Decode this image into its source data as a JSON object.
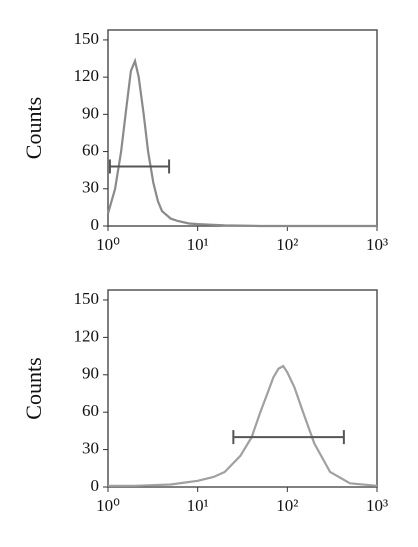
{
  "chart_data": [
    {
      "type": "line",
      "ylabel": "Counts",
      "xscale": "log",
      "color": "#8a8a8a",
      "x": [
        1,
        1.2,
        1.4,
        1.6,
        1.8,
        2,
        2.2,
        2.5,
        2.8,
        3.2,
        3.6,
        4,
        5,
        6,
        8,
        10,
        15,
        20,
        50,
        100,
        1000
      ],
      "values": [
        10,
        30,
        60,
        95,
        125,
        133,
        120,
        90,
        60,
        35,
        20,
        12,
        6,
        4,
        2,
        1.5,
        1,
        0.5,
        0,
        0,
        0
      ],
      "gate": {
        "x": [
          1.05,
          4.8
        ],
        "y": 48
      },
      "xlim": [
        1,
        1000
      ],
      "ylim": [
        0,
        158
      ],
      "xticks": [
        {
          "value": 1,
          "label": "10⁰"
        },
        {
          "value": 10,
          "label": "10¹"
        },
        {
          "value": 100,
          "label": "10²"
        },
        {
          "value": 1000,
          "label": "10³"
        }
      ],
      "yticks": [
        0,
        30,
        60,
        90,
        120,
        150
      ]
    },
    {
      "type": "line",
      "ylabel": "Counts",
      "xscale": "log",
      "color": "#a0a0a0",
      "x": [
        1,
        2,
        5,
        10,
        15,
        20,
        30,
        40,
        50,
        60,
        70,
        80,
        90,
        100,
        120,
        150,
        200,
        300,
        500,
        1000
      ],
      "values": [
        1,
        1,
        2,
        5,
        8,
        12,
        25,
        40,
        60,
        75,
        88,
        95,
        97,
        92,
        80,
        60,
        35,
        12,
        3,
        1
      ],
      "gate": {
        "x": [
          25,
          427
        ],
        "y": 40
      },
      "xlim": [
        1,
        1000
      ],
      "ylim": [
        0,
        158
      ],
      "xticks": [
        {
          "value": 1,
          "label": "10⁰"
        },
        {
          "value": 10,
          "label": "10¹"
        },
        {
          "value": 100,
          "label": "10²"
        },
        {
          "value": 1000,
          "label": "10³"
        }
      ],
      "yticks": [
        0,
        30,
        60,
        90,
        120,
        150
      ]
    }
  ]
}
